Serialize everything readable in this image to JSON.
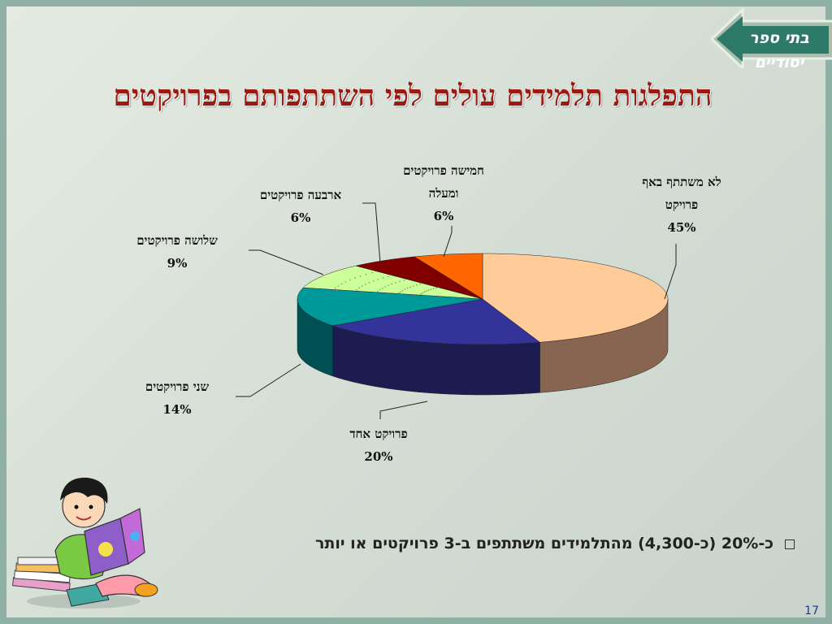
{
  "title": "התפלגות תלמידים עולים לפי השתתפותם בפרויקטים",
  "banner": "בתי ספר יסודיים",
  "bullet": "כ-20%  (כ-4,300) מהתלמידים משתתפים ב-3 פרויקטים או יותר",
  "page_number": "17",
  "chart_data": {
    "type": "pie",
    "title": "התפלגות תלמידים עולים לפי השתתפותם בפרויקטים",
    "categories": [
      "לא משתתף באף פרויקט",
      "פרויקט אחד",
      "שני פרויקטים",
      "שלושה פרויקטים",
      "ארבעה פרויקטים",
      "חמישה פרויקטים ומעלה"
    ],
    "values": [
      45,
      20,
      14,
      9,
      6,
      6
    ],
    "value_labels": [
      "45%",
      "20%",
      "14%",
      "9%",
      "6%",
      "6%"
    ],
    "colors": [
      "#ffcc99",
      "#333399",
      "#009999",
      "#ccff99",
      "#800000",
      "#ff6600"
    ],
    "side_colors": [
      "#886550",
      "#1c1c50",
      "#004f52",
      "#8aa760",
      "#4c0000",
      "#b04400"
    ],
    "style": "3d-exploded-none"
  },
  "labels": [
    {
      "line1": "לא משתתף באף",
      "line2": "פרויקט",
      "value": "45%"
    },
    {
      "line1": "פרויקט אחד",
      "line2": "",
      "value": "20%"
    },
    {
      "line1": "שני פרויקטים",
      "line2": "",
      "value": "14%"
    },
    {
      "line1": "שלושה פרויקטים",
      "line2": "",
      "value": "9%"
    },
    {
      "line1": "ארבעה פרויקטים",
      "line2": "",
      "value": "6%"
    },
    {
      "line1": "חמישה פרויקטים",
      "line2": "ומעלה",
      "value": "6%"
    }
  ]
}
